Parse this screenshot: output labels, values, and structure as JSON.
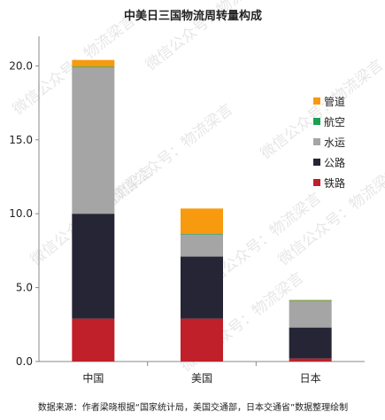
{
  "chart_data": {
    "type": "bar",
    "stacked": true,
    "title": "中美日三国物流周转量构成",
    "categories": [
      "中国",
      "美国",
      "日本"
    ],
    "series": [
      {
        "name": "铁路",
        "color": "#c0202a",
        "values": [
          2.9,
          2.9,
          0.2
        ]
      },
      {
        "name": "公路",
        "color": "#252535",
        "values": [
          7.1,
          4.2,
          2.1
        ]
      },
      {
        "name": "水运",
        "color": "#a5a5a5",
        "values": [
          9.9,
          1.5,
          1.8
        ]
      },
      {
        "name": "航空",
        "color": "#1aa052",
        "values": [
          0.05,
          0.05,
          0.05
        ]
      },
      {
        "name": "管道",
        "color": "#f79a0f",
        "values": [
          0.45,
          1.7,
          0.02
        ]
      }
    ],
    "yticks": [
      "0.0",
      "5.0",
      "10.0",
      "15.0",
      "20.0"
    ],
    "ylim": [
      0,
      22
    ],
    "grid": false,
    "legend_position": "right",
    "source": "数据来源：作者梁晓根据“国家统计局，美国交通部，日本交通省”数据整理绘制",
    "watermark": "微信公众号：物流梁言"
  }
}
